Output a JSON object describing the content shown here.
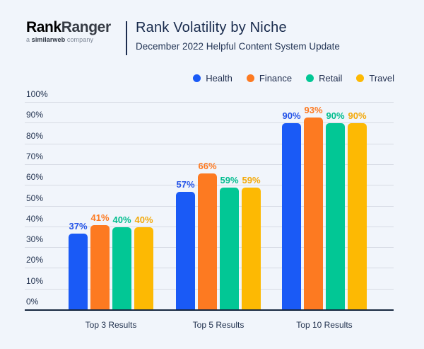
{
  "brand": {
    "logo_rank": "Rank",
    "logo_ranger": "Ranger",
    "tagline_a": "a ",
    "tagline_similarweb": "similarweb",
    "tagline_company": " company"
  },
  "header": {
    "title": "Rank Volatility by Niche",
    "subtitle": "December 2022 Helpful Content System Update"
  },
  "colors": {
    "background": "#f1f5fb",
    "grid": "#d7dbe4",
    "axis": "#16263e",
    "text_dark": "#1f2d4e",
    "logo_blue": "#1557e8",
    "logo_dark": "#363b44"
  },
  "chart_data": {
    "type": "bar",
    "title": "Rank Volatility by Niche",
    "subtitle": "December 2022 Helpful Content System Update",
    "categories": [
      "Top 3 Results",
      "Top 5 Results",
      "Top 10 Results"
    ],
    "series": [
      {
        "name": "Health",
        "color": "#1a5af6",
        "label_color": "#2453e8",
        "values": [
          37,
          57,
          90
        ]
      },
      {
        "name": "Finance",
        "color": "#fd7a21",
        "label_color": "#fd7a21",
        "values": [
          41,
          66,
          93
        ]
      },
      {
        "name": "Retail",
        "color": "#02c795",
        "label_color": "#02bd8f",
        "values": [
          40,
          59,
          90
        ]
      },
      {
        "name": "Travel",
        "color": "#fdb903",
        "label_color": "#f3a90a",
        "values": [
          40,
          59,
          90
        ]
      }
    ],
    "ylim": [
      0,
      100
    ],
    "ytick_step": 10,
    "yticks": [
      "0%",
      "10%",
      "20%",
      "30%",
      "40%",
      "50%",
      "60%",
      "70%",
      "80%",
      "90%",
      "100%"
    ],
    "value_suffix": "%",
    "grid": true,
    "legend_position": "top-right"
  }
}
